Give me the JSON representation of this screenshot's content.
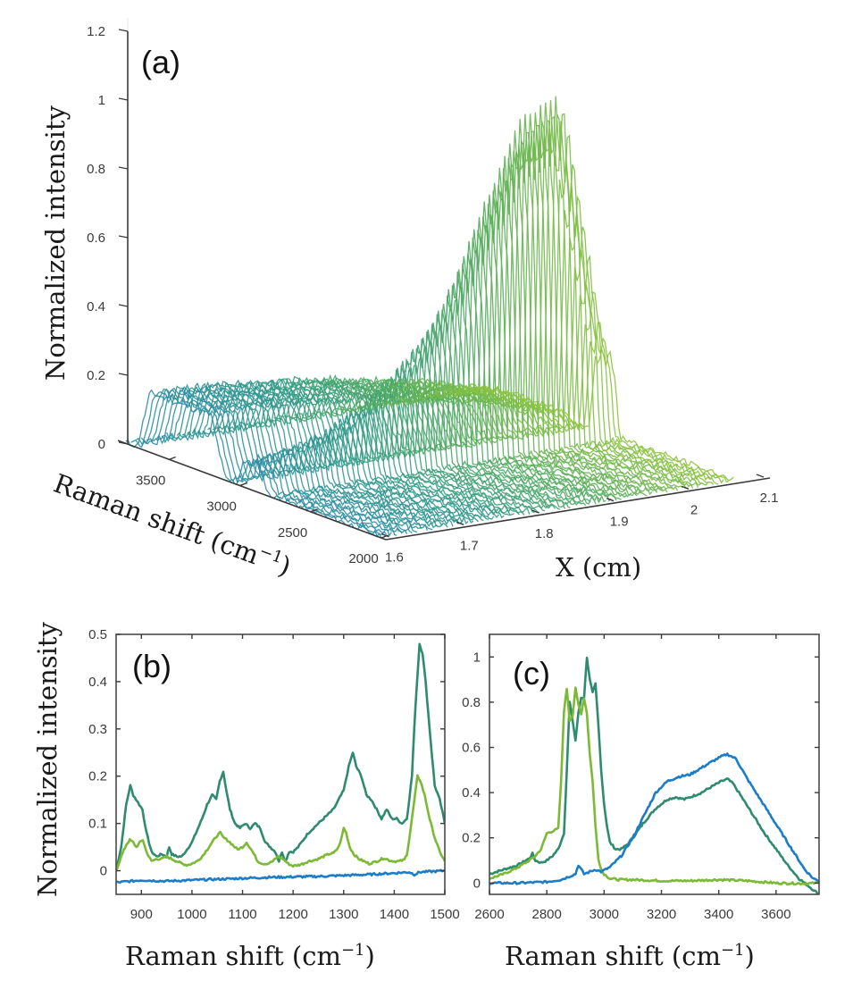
{
  "chart_data": [
    {
      "id": "a",
      "type": "line",
      "subtype": "3d-waterfall",
      "panel_label": "(a)",
      "zlabel": "Normalized intensity",
      "ylabel": "Raman shift (cm⁻¹)",
      "xlabel": "X (cm)",
      "zlim": [
        0,
        1.2
      ],
      "z_ticks": [
        0,
        0.2,
        0.4,
        0.6,
        0.8,
        1,
        1.2
      ],
      "z_tick_labels": [
        "0",
        "0.2",
        "0.4",
        "0.6",
        "0.8",
        "1",
        "1.2"
      ],
      "raman_lim": [
        3800,
        2000
      ],
      "raman_ticks": [
        3500,
        3000,
        2500,
        2000
      ],
      "raman_tick_labels": [
        "3500",
        "3000",
        "2500",
        "2000"
      ],
      "x_lim": [
        1.59,
        2.1
      ],
      "x_ticks": [
        1.6,
        1.7,
        1.8,
        1.9,
        2,
        2.1
      ],
      "x_tick_labels": [
        "1.6",
        "1.7",
        "1.8",
        "1.9",
        "2",
        "2.1"
      ],
      "colormap": [
        "#2a8ca6",
        "#2f9a86",
        "#55ad5a",
        "#8cc43c"
      ],
      "n_traces": 70,
      "description": "Waterfall of spectra along X; water band (~3200-3600) ~0.15 at low X decreasing; CH band (~2850-2950) rises from ~0.1 at X=1.6 to ~1.0 near X=2.0 then drops",
      "profile": {
        "x_positions_cm": [
          1.6,
          1.65,
          1.7,
          1.75,
          1.8,
          1.85,
          1.9,
          1.95,
          2.0,
          2.05,
          2.1
        ],
        "water_band_peak": [
          0.17,
          0.17,
          0.16,
          0.15,
          0.14,
          0.12,
          0.1,
          0.08,
          0.05,
          0.02,
          0.0
        ],
        "ch_band_peak": [
          0.08,
          0.1,
          0.13,
          0.2,
          0.3,
          0.45,
          0.7,
          0.95,
          1.0,
          0.3,
          0.02
        ]
      }
    },
    {
      "id": "b",
      "type": "line",
      "panel_label": "(b)",
      "title": "",
      "xlabel": "Raman shift (cm⁻¹)",
      "ylabel": "Normalized intensity",
      "xlim": [
        850,
        1500
      ],
      "ylim": [
        -0.05,
        0.5
      ],
      "x_ticks": [
        900,
        1000,
        1100,
        1200,
        1300,
        1400,
        1500
      ],
      "x_tick_labels": [
        "900",
        "1000",
        "1100",
        "1200",
        "1300",
        "1400",
        "1500"
      ],
      "y_ticks": [
        0,
        0.1,
        0.2,
        0.3,
        0.4,
        0.5
      ],
      "y_tick_labels": [
        "0",
        "0.1",
        "0.2",
        "0.3",
        "0.4",
        "0.5"
      ],
      "grid": false,
      "series": [
        {
          "name": "dark-green",
          "color": "#2e8b70",
          "x": [
            850,
            860,
            870,
            878,
            884,
            890,
            896,
            902,
            910,
            920,
            930,
            940,
            950,
            955,
            960,
            970,
            980,
            990,
            1000,
            1010,
            1020,
            1030,
            1040,
            1048,
            1055,
            1062,
            1068,
            1075,
            1085,
            1095,
            1105,
            1115,
            1125,
            1135,
            1145,
            1155,
            1165,
            1172,
            1178,
            1185,
            1192,
            1200,
            1210,
            1220,
            1230,
            1240,
            1250,
            1260,
            1270,
            1280,
            1290,
            1300,
            1310,
            1318,
            1325,
            1335,
            1345,
            1355,
            1365,
            1375,
            1385,
            1395,
            1405,
            1415,
            1425,
            1435,
            1442,
            1450,
            1456,
            1462,
            1470,
            1480,
            1490,
            1500
          ],
          "y": [
            0.0,
            0.05,
            0.14,
            0.18,
            0.16,
            0.15,
            0.14,
            0.13,
            0.08,
            0.04,
            0.03,
            0.035,
            0.03,
            0.05,
            0.035,
            0.03,
            0.03,
            0.045,
            0.06,
            0.085,
            0.11,
            0.14,
            0.16,
            0.15,
            0.19,
            0.21,
            0.17,
            0.13,
            0.1,
            0.09,
            0.1,
            0.09,
            0.1,
            0.09,
            0.06,
            0.05,
            0.04,
            0.02,
            0.04,
            0.02,
            0.04,
            0.04,
            0.05,
            0.065,
            0.08,
            0.09,
            0.1,
            0.11,
            0.12,
            0.13,
            0.15,
            0.17,
            0.22,
            0.25,
            0.22,
            0.2,
            0.16,
            0.15,
            0.13,
            0.11,
            0.13,
            0.11,
            0.11,
            0.1,
            0.11,
            0.2,
            0.35,
            0.48,
            0.46,
            0.4,
            0.3,
            0.18,
            0.15,
            0.1
          ]
        },
        {
          "name": "light-green",
          "color": "#7cb934",
          "x": [
            850,
            860,
            870,
            877,
            884,
            890,
            897,
            903,
            910,
            920,
            930,
            940,
            950,
            960,
            970,
            980,
            990,
            1000,
            1010,
            1020,
            1030,
            1040,
            1050,
            1056,
            1062,
            1070,
            1080,
            1090,
            1100,
            1108,
            1114,
            1120,
            1130,
            1140,
            1150,
            1160,
            1170,
            1180,
            1190,
            1200,
            1210,
            1220,
            1230,
            1240,
            1250,
            1260,
            1270,
            1280,
            1290,
            1296,
            1300,
            1305,
            1312,
            1320,
            1330,
            1340,
            1350,
            1360,
            1370,
            1380,
            1390,
            1400,
            1410,
            1420,
            1425,
            1430,
            1440,
            1446,
            1452,
            1460,
            1470,
            1480,
            1490,
            1500
          ],
          "y": [
            0.0,
            0.03,
            0.055,
            0.065,
            0.06,
            0.05,
            0.06,
            0.065,
            0.04,
            0.02,
            0.025,
            0.025,
            0.03,
            0.025,
            0.02,
            0.015,
            0.012,
            0.015,
            0.02,
            0.03,
            0.045,
            0.06,
            0.075,
            0.08,
            0.07,
            0.065,
            0.055,
            0.045,
            0.05,
            0.06,
            0.05,
            0.04,
            0.02,
            0.015,
            0.015,
            0.02,
            0.03,
            0.025,
            0.015,
            0.01,
            0.012,
            0.015,
            0.02,
            0.022,
            0.025,
            0.03,
            0.035,
            0.037,
            0.05,
            0.07,
            0.09,
            0.08,
            0.05,
            0.035,
            0.025,
            0.02,
            0.015,
            0.018,
            0.022,
            0.027,
            0.022,
            0.02,
            0.02,
            0.023,
            0.035,
            0.07,
            0.15,
            0.2,
            0.19,
            0.16,
            0.11,
            0.07,
            0.04,
            0.02
          ]
        },
        {
          "name": "blue",
          "color": "#1b7cc8",
          "x": [
            850,
            900,
            950,
            1000,
            1050,
            1100,
            1150,
            1200,
            1250,
            1300,
            1350,
            1400,
            1430,
            1440,
            1450,
            1500
          ],
          "y": [
            -0.025,
            -0.02,
            -0.022,
            -0.02,
            -0.018,
            -0.016,
            -0.014,
            -0.013,
            -0.012,
            -0.01,
            -0.008,
            -0.005,
            -0.003,
            -0.008,
            -0.003,
            0.0
          ]
        }
      ]
    },
    {
      "id": "c",
      "type": "line",
      "panel_label": "(c)",
      "title": "",
      "xlabel": "Raman shift (cm⁻¹)",
      "ylabel": "",
      "xlim": [
        2600,
        3750
      ],
      "ylim": [
        -0.05,
        1.1
      ],
      "x_ticks": [
        2600,
        2800,
        3000,
        3200,
        3400,
        3600
      ],
      "x_tick_labels": [
        "2600",
        "2800",
        "3000",
        "3200",
        "3400",
        "3600"
      ],
      "y_ticks": [
        0,
        0.2,
        0.4,
        0.6,
        0.8,
        1
      ],
      "y_tick_labels": [
        "0",
        "0.2",
        "0.4",
        "0.6",
        "0.8",
        "1"
      ],
      "grid": false,
      "series": [
        {
          "name": "dark-green",
          "color": "#2e8b70",
          "x": [
            2600,
            2650,
            2700,
            2740,
            2750,
            2760,
            2780,
            2800,
            2820,
            2840,
            2860,
            2870,
            2880,
            2890,
            2900,
            2910,
            2920,
            2930,
            2940,
            2950,
            2960,
            2970,
            2980,
            2990,
            3000,
            3010,
            3020,
            3040,
            3060,
            3080,
            3100,
            3140,
            3180,
            3220,
            3250,
            3280,
            3300,
            3340,
            3380,
            3410,
            3430,
            3450,
            3480,
            3520,
            3560,
            3600,
            3640,
            3680,
            3720,
            3750
          ],
          "y": [
            0.04,
            0.06,
            0.08,
            0.11,
            0.13,
            0.1,
            0.09,
            0.1,
            0.12,
            0.15,
            0.22,
            0.5,
            0.8,
            0.72,
            0.63,
            0.75,
            0.82,
            0.82,
            1.0,
            0.9,
            0.84,
            0.88,
            0.7,
            0.5,
            0.35,
            0.25,
            0.18,
            0.15,
            0.15,
            0.17,
            0.2,
            0.27,
            0.33,
            0.37,
            0.38,
            0.37,
            0.38,
            0.4,
            0.43,
            0.45,
            0.46,
            0.44,
            0.38,
            0.3,
            0.22,
            0.15,
            0.08,
            0.02,
            -0.02,
            -0.05
          ]
        },
        {
          "name": "light-green",
          "color": "#7cb934",
          "x": [
            2600,
            2650,
            2700,
            2740,
            2760,
            2780,
            2800,
            2820,
            2840,
            2850,
            2860,
            2870,
            2880,
            2890,
            2900,
            2910,
            2920,
            2930,
            2940,
            2950,
            2960,
            2970,
            2980,
            2990,
            3000,
            3020,
            3050,
            3100,
            3200,
            3300,
            3400,
            3500,
            3600,
            3700,
            3750
          ],
          "y": [
            0.02,
            0.04,
            0.07,
            0.1,
            0.12,
            0.15,
            0.22,
            0.23,
            0.24,
            0.45,
            0.76,
            0.86,
            0.72,
            0.74,
            0.86,
            0.79,
            0.75,
            0.82,
            0.75,
            0.57,
            0.45,
            0.25,
            0.11,
            0.06,
            0.04,
            0.02,
            0.015,
            0.015,
            0.01,
            0.01,
            0.015,
            0.01,
            0.0,
            -0.002,
            0.0
          ]
        },
        {
          "name": "blue",
          "color": "#1b7cc8",
          "x": [
            2600,
            2700,
            2800,
            2850,
            2880,
            2900,
            2910,
            2930,
            2950,
            2970,
            2990,
            3020,
            3060,
            3100,
            3140,
            3180,
            3220,
            3260,
            3300,
            3340,
            3380,
            3410,
            3430,
            3460,
            3500,
            3540,
            3580,
            3620,
            3660,
            3700,
            3730,
            3750
          ],
          "y": [
            0.0,
            0.0,
            0.005,
            0.015,
            0.03,
            0.04,
            0.08,
            0.04,
            0.05,
            0.06,
            0.05,
            0.07,
            0.12,
            0.2,
            0.3,
            0.4,
            0.45,
            0.47,
            0.48,
            0.51,
            0.54,
            0.56,
            0.57,
            0.55,
            0.46,
            0.38,
            0.3,
            0.22,
            0.14,
            0.06,
            0.02,
            0.01
          ]
        }
      ]
    }
  ]
}
